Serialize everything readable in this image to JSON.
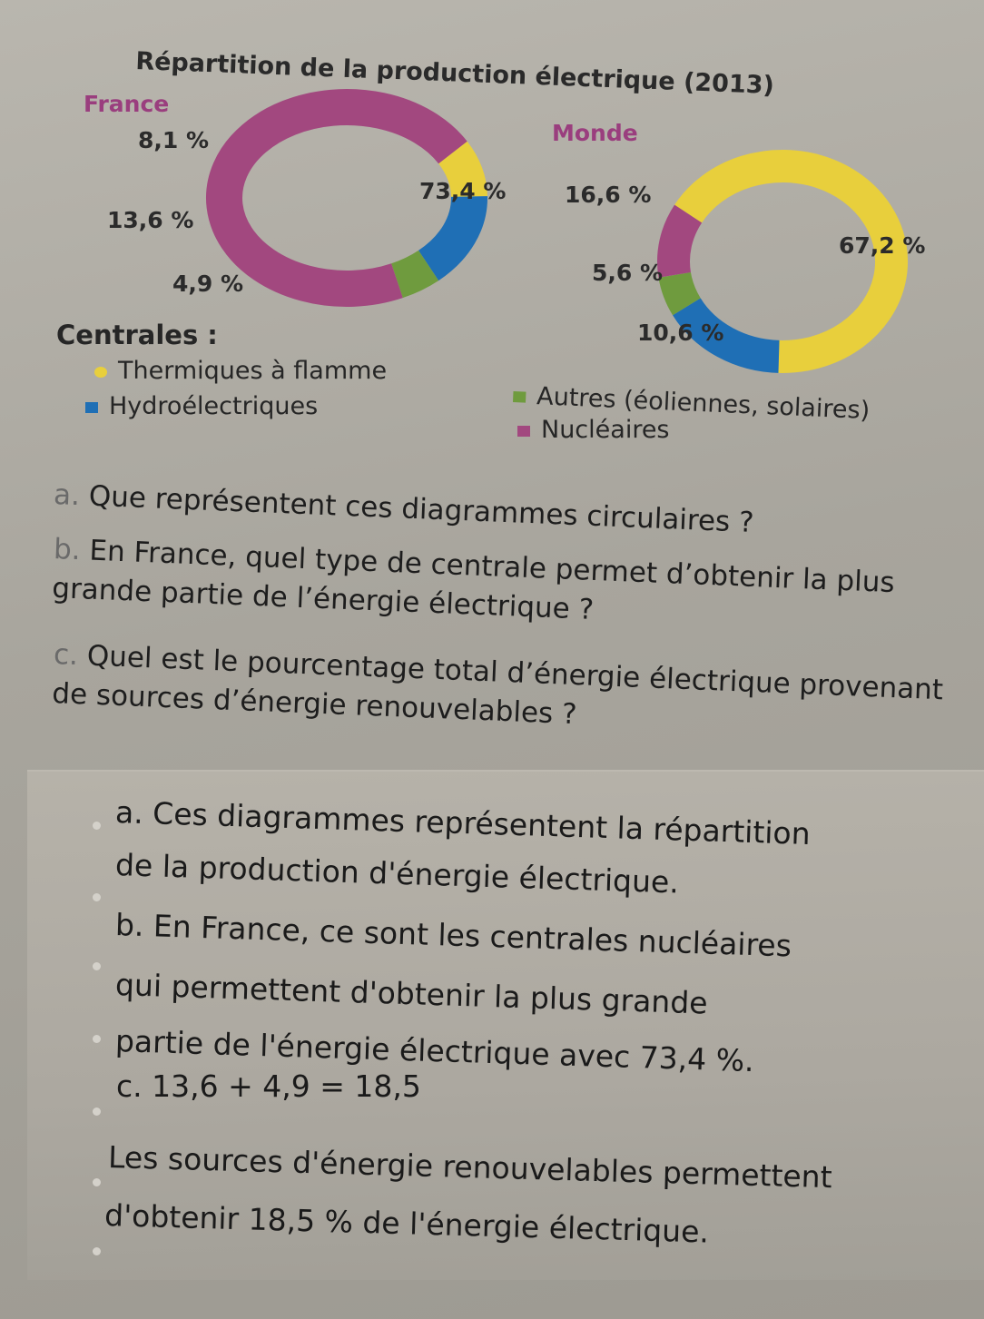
{
  "chart_data": {
    "type": "pie",
    "title": "Répartition de la production électrique (2013)",
    "legend_title": "Centrales :",
    "categories": [
      "Thermiques à flamme",
      "Hydroélectriques",
      "Autres (éoliennes, solaires)",
      "Nucléaires"
    ],
    "colors": [
      "#e8cf3c",
      "#1f6fb5",
      "#6f9b3e",
      "#a2487f"
    ],
    "series": [
      {
        "name": "France",
        "values": [
          8.1,
          13.6,
          4.9,
          73.4
        ],
        "labels": [
          "8,1 %",
          "13,6 %",
          "4,9 %",
          "73,4 %"
        ]
      },
      {
        "name": "Monde",
        "values": [
          67.2,
          16.6,
          5.6,
          10.6
        ],
        "labels": [
          "67,2 %",
          "16,6 %",
          "5,6 %",
          "10,6 %"
        ]
      }
    ]
  },
  "questions": [
    {
      "letter": "a.",
      "text": "Que représentent ces diagrammes circulaires ?"
    },
    {
      "letter": "b.",
      "text": "En France, quel type de centrale permet d’obtenir la plus grande partie de l’énergie électrique ?"
    },
    {
      "letter": "c.",
      "text": "Quel est le pourcentage total d’énergie électrique provenant de sources d’énergie renouvelables ?"
    }
  ],
  "answers": {
    "line1": "a. Ces diagrammes représentent la répartition",
    "line2": "de la production d'énergie électrique.",
    "line3": "b. En France, ce sont les centrales nucléaires",
    "line4": "qui permettent d'obtenir la plus grande",
    "line5": "partie de l'énergie électrique avec 73,4 %.",
    "line6": "c. 13,6 + 4,9 = 18,5",
    "line7": "Les sources d'énergie renouvelables permettent",
    "line8": "d'obtenir 18,5 % de l'énergie électrique."
  }
}
